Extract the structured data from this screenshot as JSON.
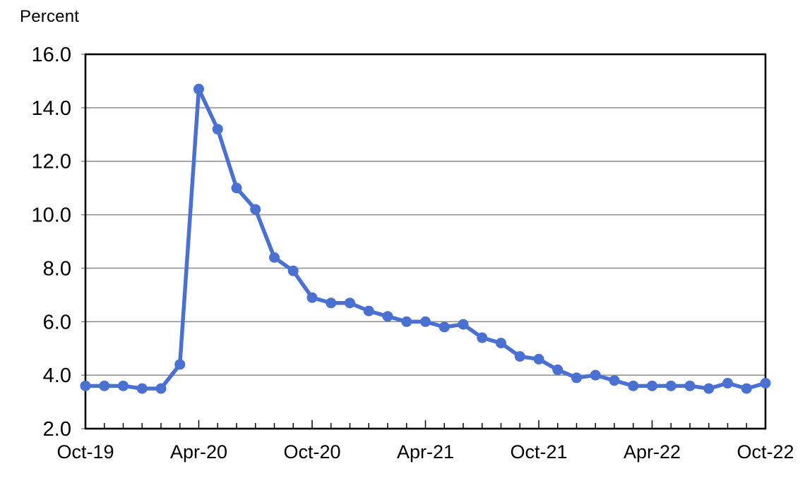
{
  "page": {
    "background": "#ffffff"
  },
  "chart_data": {
    "type": "line",
    "title": "",
    "ylabel": "Percent",
    "xlabel": "",
    "categories": [
      "Oct-19",
      "Nov-19",
      "Dec-19",
      "Jan-20",
      "Feb-20",
      "Mar-20",
      "Apr-20",
      "May-20",
      "Jun-20",
      "Jul-20",
      "Aug-20",
      "Sep-20",
      "Oct-20",
      "Nov-20",
      "Dec-20",
      "Jan-21",
      "Feb-21",
      "Mar-21",
      "Apr-21",
      "May-21",
      "Jun-21",
      "Jul-21",
      "Aug-21",
      "Sep-21",
      "Oct-21",
      "Nov-21",
      "Dec-21",
      "Jan-22",
      "Feb-22",
      "Mar-22",
      "Apr-22",
      "May-22",
      "Jun-22",
      "Jul-22",
      "Aug-22",
      "Sep-22",
      "Oct-22"
    ],
    "values": [
      3.6,
      3.6,
      3.6,
      3.5,
      3.5,
      4.4,
      14.7,
      13.2,
      11.0,
      10.2,
      8.4,
      7.9,
      6.9,
      6.7,
      6.7,
      6.4,
      6.2,
      6.0,
      6.0,
      5.8,
      5.9,
      5.4,
      5.2,
      4.7,
      4.6,
      4.2,
      3.9,
      4.0,
      3.8,
      3.6,
      3.6,
      3.6,
      3.6,
      3.5,
      3.7,
      3.5,
      3.7
    ],
    "ylim": [
      2.0,
      16.0
    ],
    "ytick_step": 2.0,
    "ytick_labels": [
      "2.0",
      "4.0",
      "6.0",
      "8.0",
      "10.0",
      "12.0",
      "14.0",
      "16.0"
    ],
    "xtick_labels": [
      "Oct-19",
      "Apr-20",
      "Oct-20",
      "Apr-21",
      "Oct-21",
      "Apr-22",
      "Oct-22"
    ],
    "xtick_positions": [
      0,
      6,
      12,
      18,
      24,
      30,
      36
    ],
    "grid": "horizontal",
    "legend": "none",
    "line_color": "#4a70d2",
    "marker": "circle",
    "axis_color": "#000000",
    "gridline_color": "#8c8c8c"
  }
}
